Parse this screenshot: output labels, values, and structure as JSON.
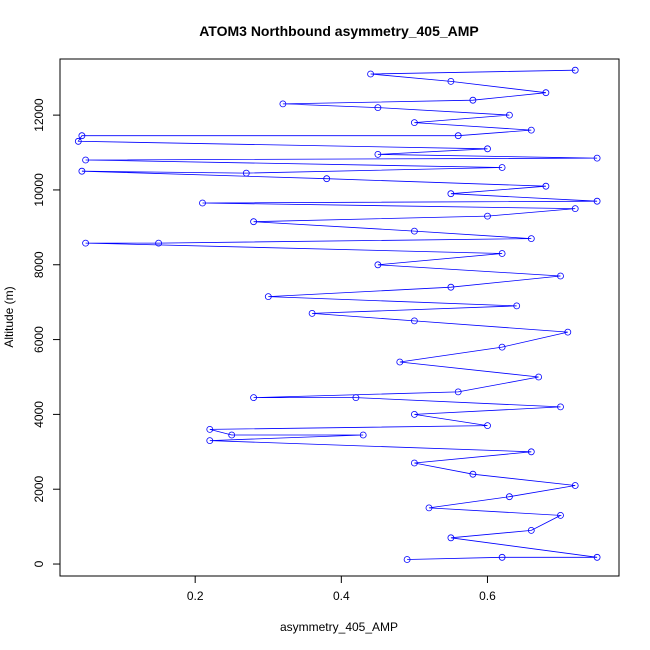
{
  "chart_data": {
    "type": "line",
    "title": "ATOM3 Northbound asymmetry_405_AMP",
    "xlabel": "asymmetry_405_AMP",
    "ylabel": "Altitude (m)",
    "xlim": [
      0.015,
      0.78
    ],
    "ylim": [
      -320,
      13500
    ],
    "x_ticks": [
      0.2,
      0.4,
      0.6
    ],
    "x_tick_labels": [
      "0.2",
      "0.4",
      "0.6"
    ],
    "y_ticks": [
      0,
      2000,
      4000,
      6000,
      8000,
      10000,
      12000
    ],
    "y_tick_labels": [
      "0",
      "2000",
      "4000",
      "6000",
      "8000",
      "10000",
      "12000"
    ],
    "grid": false,
    "legend": "none",
    "marker": "open-circle",
    "series": [
      {
        "color": "#0000ff",
        "points": [
          [
            0.49,
            120
          ],
          [
            0.62,
            180
          ],
          [
            0.75,
            180
          ],
          [
            0.55,
            700
          ],
          [
            0.66,
            900
          ],
          [
            0.7,
            1300
          ],
          [
            0.52,
            1500
          ],
          [
            0.63,
            1800
          ],
          [
            0.72,
            2100
          ],
          [
            0.58,
            2400
          ],
          [
            0.5,
            2700
          ],
          [
            0.66,
            3000
          ],
          [
            0.22,
            3300
          ],
          [
            0.43,
            3450
          ],
          [
            0.25,
            3450
          ],
          [
            0.22,
            3600
          ],
          [
            0.6,
            3700
          ],
          [
            0.5,
            4000
          ],
          [
            0.7,
            4200
          ],
          [
            0.42,
            4450
          ],
          [
            0.28,
            4450
          ],
          [
            0.56,
            4600
          ],
          [
            0.67,
            5000
          ],
          [
            0.48,
            5400
          ],
          [
            0.62,
            5800
          ],
          [
            0.71,
            6200
          ],
          [
            0.5,
            6500
          ],
          [
            0.36,
            6700
          ],
          [
            0.64,
            6900
          ],
          [
            0.3,
            7150
          ],
          [
            0.55,
            7400
          ],
          [
            0.7,
            7700
          ],
          [
            0.45,
            8000
          ],
          [
            0.62,
            8300
          ],
          [
            0.05,
            8580
          ],
          [
            0.15,
            8580
          ],
          [
            0.66,
            8700
          ],
          [
            0.5,
            8900
          ],
          [
            0.28,
            9150
          ],
          [
            0.6,
            9300
          ],
          [
            0.72,
            9500
          ],
          [
            0.21,
            9650
          ],
          [
            0.75,
            9700
          ],
          [
            0.55,
            9900
          ],
          [
            0.68,
            10100
          ],
          [
            0.38,
            10300
          ],
          [
            0.045,
            10500
          ],
          [
            0.27,
            10450
          ],
          [
            0.62,
            10600
          ],
          [
            0.05,
            10800
          ],
          [
            0.75,
            10850
          ],
          [
            0.45,
            10950
          ],
          [
            0.6,
            11100
          ],
          [
            0.04,
            11300
          ],
          [
            0.045,
            11450
          ],
          [
            0.56,
            11450
          ],
          [
            0.66,
            11600
          ],
          [
            0.5,
            11800
          ],
          [
            0.63,
            12000
          ],
          [
            0.45,
            12200
          ],
          [
            0.32,
            12300
          ],
          [
            0.58,
            12400
          ],
          [
            0.68,
            12600
          ],
          [
            0.55,
            12900
          ],
          [
            0.44,
            13100
          ],
          [
            0.72,
            13200
          ]
        ]
      }
    ]
  }
}
